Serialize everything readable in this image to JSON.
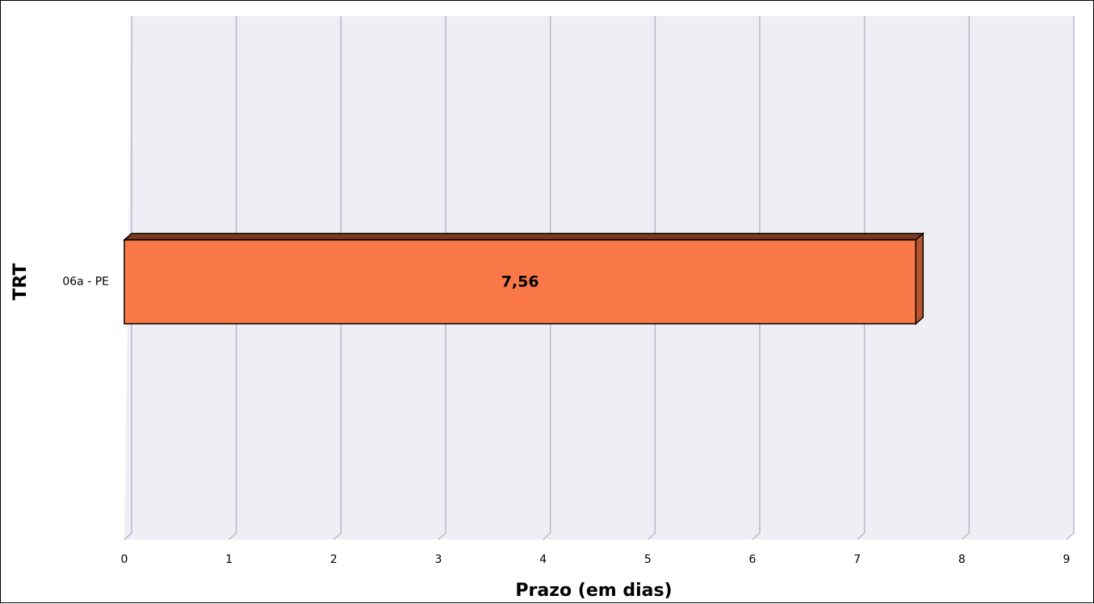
{
  "chart_data": {
    "type": "bar",
    "orientation": "horizontal",
    "style": "3d",
    "categories": [
      "06a - PE"
    ],
    "values": [
      7.56
    ],
    "value_labels": [
      "7,56"
    ],
    "title": "",
    "xlabel": "Prazo (em dias)",
    "ylabel": "TRT",
    "xlim": [
      0,
      9
    ],
    "x_ticks": [
      "0",
      "1",
      "2",
      "3",
      "4",
      "5",
      "6",
      "7",
      "8",
      "9"
    ],
    "grid": true,
    "legend": "none",
    "colors": {
      "bar_front": "#FB7948",
      "bar_top": "#7A3A1F",
      "bar_side": "#B9552E",
      "bar_outline": "#000000",
      "plot_background": "#EFEEF4",
      "gridline": "#B8B6CB"
    }
  }
}
